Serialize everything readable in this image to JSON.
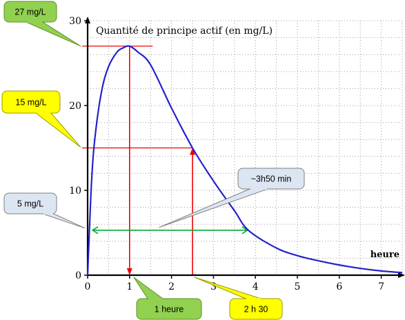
{
  "chart_data": {
    "type": "line",
    "title": "",
    "ylabel": "Quantité de principe actif (en mg/L)",
    "xlabel": "heure",
    "xlim": [
      0,
      7.5
    ],
    "ylim": [
      0,
      30
    ],
    "x_ticks": [
      "0",
      "1",
      "2",
      "3",
      "4",
      "5",
      "6",
      "7"
    ],
    "y_ticks": [
      "0",
      "10",
      "20",
      "30"
    ],
    "grid": true,
    "series": [
      {
        "x": [
          0,
          0.1,
          0.2,
          0.35,
          0.5,
          0.7,
          0.85,
          1,
          1.2,
          1.5,
          2,
          2.5,
          3,
          3.5,
          3.83,
          4.5,
          5,
          5.5,
          6,
          6.5,
          7,
          7.5
        ],
        "y": [
          0,
          11.6,
          17.3,
          22.1,
          24.6,
          26.3,
          26.8,
          27,
          26.3,
          24.8,
          19.7,
          15,
          11.1,
          7.6,
          5.3,
          3.2,
          2.3,
          1.7,
          1.2,
          0.8,
          0.5,
          0.3
        ],
        "color": "#2222cc"
      }
    ],
    "reference_lines": {
      "peak": {
        "x": 1,
        "y": 27,
        "color": "#ee0000"
      },
      "level_15": {
        "x": 2.5,
        "y": 15,
        "color": "#ee0000"
      },
      "level_5": {
        "x_from": 0.1,
        "x_to": 3.83,
        "y": 5.3,
        "color": "#00aa33"
      }
    },
    "annotations": [
      {
        "text": "27 mg/L",
        "fill": "#92d050",
        "border": "#5f8f2a"
      },
      {
        "text": "15 mg/L",
        "fill": "#ffff00",
        "border": "#999900"
      },
      {
        "text": "5 mg/L",
        "fill": "#dce6f2",
        "border": "#7f7f7f"
      },
      {
        "text": "~3h50 min",
        "fill": "#dce6f2",
        "border": "#7f7f7f"
      },
      {
        "text": "1 heure",
        "fill": "#92d050",
        "border": "#5f8f2a"
      },
      {
        "text": "2 h 30",
        "fill": "#ffff00",
        "border": "#999900"
      }
    ]
  }
}
